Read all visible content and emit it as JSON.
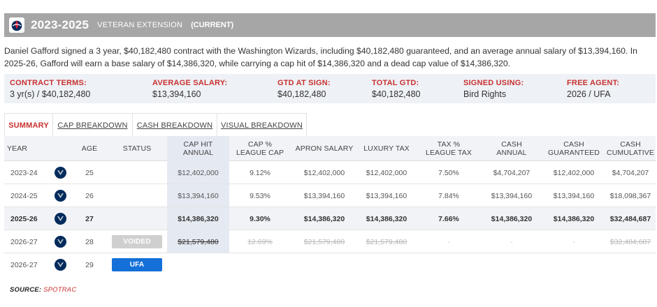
{
  "header": {
    "years": "2023-2025",
    "contract_type": "VETERAN EXTENSION",
    "status": "(CURRENT)",
    "logo_icon": "wizards-logo-icon"
  },
  "summary_text": "Daniel Gafford signed a 3 year, $40,182,480 contract with the Washington Wizards, including $40,182,480 guaranteed, and an average annual salary of $13,394,160. In 2025-26, Gafford will earn a base salary of $14,386,320, while carrying a cap hit of $14,386,320 and a dead cap value of $14,386,320.",
  "terms": [
    {
      "label": "CONTRACT TERMS:",
      "value": "3 yr(s) / $40,182,480"
    },
    {
      "label": "AVERAGE SALARY:",
      "value": "$13,394,160"
    },
    {
      "label": "GTD AT SIGN:",
      "value": "$40,182,480"
    },
    {
      "label": "TOTAL GTD:",
      "value": "$40,182,480"
    },
    {
      "label": "SIGNED USING:",
      "value": "Bird Rights"
    },
    {
      "label": "FREE AGENT:",
      "value": "2026 / UFA"
    }
  ],
  "tabs": [
    {
      "label": "SUMMARY",
      "active": true
    },
    {
      "label": "CAP BREAKDOWN",
      "active": false
    },
    {
      "label": "CASH BREAKDOWN",
      "active": false
    },
    {
      "label": "VISUAL BREAKDOWN",
      "active": false
    }
  ],
  "columns": {
    "year": "YEAR",
    "age": "AGE",
    "status": "STATUS",
    "cap_hit_1": "CAP HIT",
    "cap_hit_2": "ANNUAL",
    "cap_pct_1": "CAP %",
    "cap_pct_2": "LEAGUE CAP",
    "apron": "APRON SALARY",
    "luxury": "LUXURY TAX",
    "tax_pct_1": "TAX %",
    "tax_pct_2": "LEAGUE TAX",
    "cash_annual_1": "CASH",
    "cash_annual_2": "ANNUAL",
    "cash_gtd_1": "CASH",
    "cash_gtd_2": "GUARANTEED",
    "cash_cum_1": "CASH",
    "cash_cum_2": "CUMULATIVE"
  },
  "rows": [
    {
      "year": "2023-24",
      "age": "25",
      "status": "",
      "cap_hit": "$12,402,000",
      "cap_pct": "9.12%",
      "apron": "$12,402,000",
      "luxury": "$12,402,000",
      "tax_pct": "7.50%",
      "cash_annual": "$4,704,207",
      "cash_gtd": "$12,402,000",
      "cash_cum": "$4,704,207"
    },
    {
      "year": "2024-25",
      "age": "26",
      "status": "",
      "cap_hit": "$13,394,160",
      "cap_pct": "9.53%",
      "apron": "$13,394,160",
      "luxury": "$13,394,160",
      "tax_pct": "7.84%",
      "cash_annual": "$13,394,160",
      "cash_gtd": "$13,394,160",
      "cash_cum": "$18,098,367"
    },
    {
      "year": "2025-26",
      "age": "27",
      "status": "",
      "cap_hit": "$14,386,320",
      "cap_pct": "9.30%",
      "apron": "$14,386,320",
      "luxury": "$14,386,320",
      "tax_pct": "7.66%",
      "cash_annual": "$14,386,320",
      "cash_gtd": "$14,386,320",
      "cash_cum": "$32,484,687"
    },
    {
      "year": "2026-27",
      "age": "28",
      "status": "VOIDED",
      "cap_hit": "$21,579,480",
      "cap_pct": "12.69%",
      "apron": "$21,579,480",
      "luxury": "$21,579,480",
      "tax_pct": "-",
      "cash_annual": "-",
      "cash_gtd": "-",
      "cash_cum": "$32,484,687"
    },
    {
      "year": "2026-27",
      "age": "29",
      "status": "UFA"
    }
  ],
  "player_logo_icon": "mavericks-logo-icon",
  "source": {
    "label": "SOURCE:",
    "link": "SPOTRAC"
  },
  "colors": {
    "header_bg": "#a6a6a6",
    "accent_red": "#c8312f",
    "ufa_blue": "#1470d8",
    "voided_gray": "#cfcfcf",
    "highlight_col": "#e5e9f1"
  }
}
